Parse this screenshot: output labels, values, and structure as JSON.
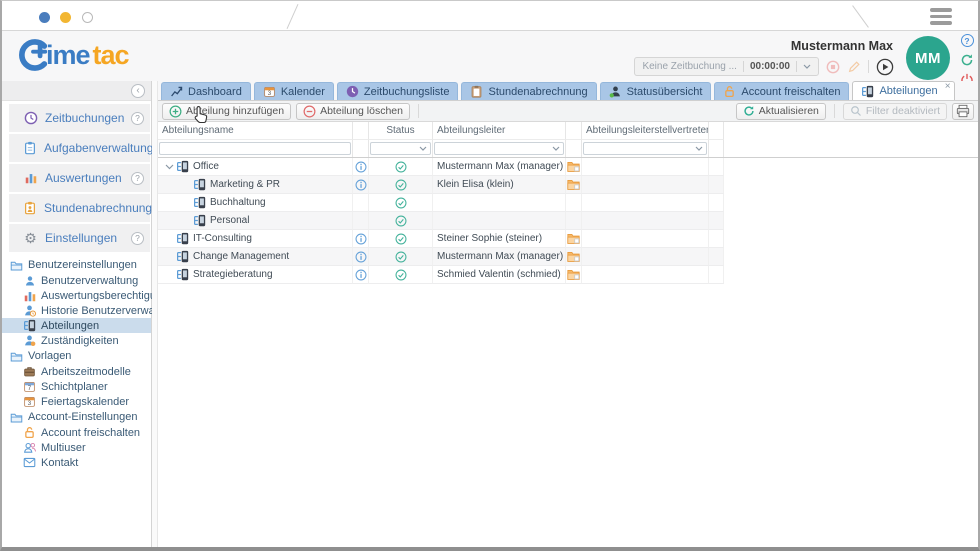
{
  "window_title": "",
  "colors": {
    "accent_blue": "#4a7ebd",
    "tab_blue": "#a9c6e6",
    "logo_blue": "#3a7cc4",
    "logo_orange": "#f5a623",
    "avatar_teal": "#2ba58e",
    "status_green": "#43b29b",
    "folder_orange": "#f2a54e",
    "info_blue": "#64a1d8"
  },
  "header": {
    "logo": {
      "text_blue": "ime",
      "text_orange": "tac"
    },
    "user_name": "Mustermann Max",
    "avatar_initials": "MM",
    "time_status": "Keine Zeitbuchung ...",
    "timer": "00:00:00",
    "help_glyph": "?"
  },
  "tabs": [
    {
      "label": "Dashboard",
      "icon": "dashboard-icon",
      "active": false
    },
    {
      "label": "Kalender",
      "icon": "calendar-icon",
      "active": false
    },
    {
      "label": "Zeitbuchungsliste",
      "icon": "clock-filled-icon",
      "active": false
    },
    {
      "label": "Stundenabrechnung",
      "icon": "clipboard-tan-icon",
      "active": false
    },
    {
      "label": "Statusübersicht",
      "icon": "person-status-icon",
      "active": false
    },
    {
      "label": "Account freischalten",
      "icon": "lock-icon",
      "active": false
    },
    {
      "label": "Abteilungen",
      "icon": "department-icon",
      "active": true,
      "closable": true
    }
  ],
  "toolbar": {
    "add_label": "Abteilung hinzufügen",
    "delete_label": "Abteilung löschen",
    "refresh_label": "Aktualisieren",
    "filter_label": "Filter deaktiviert"
  },
  "sidebar": {
    "collapse_glyph": "‹",
    "sections": [
      {
        "label": "Zeitbuchungen",
        "icon": "clock-icon",
        "help": "?"
      },
      {
        "label": "Aufgabenverwaltung",
        "icon": "clipboard-icon",
        "help": "?"
      },
      {
        "label": "Auswertungen",
        "icon": "chart-icon",
        "help": "?"
      },
      {
        "label": "Stundenabrechnung",
        "icon": "timesheet-icon",
        "help": "?"
      },
      {
        "label": "Einstellungen",
        "icon": "gear-icon",
        "help": "?"
      }
    ],
    "tree": [
      {
        "label": "Benutzereinstellungen",
        "group": true,
        "icon": "folder-icon"
      },
      {
        "label": "Benutzerverwaltung",
        "icon": "user-icon"
      },
      {
        "label": "Auswertungsberechtigungen",
        "icon": "chart-icon"
      },
      {
        "label": "Historie Benutzerverwaltung",
        "icon": "user-history-icon"
      },
      {
        "label": "Abteilungen",
        "icon": "department-icon",
        "selected": true
      },
      {
        "label": "Zuständigkeiten",
        "icon": "user-role-icon"
      },
      {
        "label": "Vorlagen",
        "group": true,
        "icon": "folder-icon"
      },
      {
        "label": "Arbeitszeitmodelle",
        "icon": "briefcase-icon"
      },
      {
        "label": "Schichtplaner",
        "icon": "calendar7-icon"
      },
      {
        "label": "Feiertagskalender",
        "icon": "calendar3-icon"
      },
      {
        "label": "Account-Einstellungen",
        "group": true,
        "icon": "folder-icon"
      },
      {
        "label": "Account freischalten",
        "icon": "lock-icon"
      },
      {
        "label": "Multiuser",
        "icon": "multiuser-icon"
      },
      {
        "label": "Kontakt",
        "icon": "mail-icon"
      }
    ]
  },
  "table": {
    "columns": [
      "Abteilungsname",
      "Status",
      "Abteilungsleiter",
      "Abteilungsleiterstellvertreter"
    ],
    "rows": [
      {
        "name": "Office",
        "level": 0,
        "expander": true,
        "info": true,
        "status": "active",
        "leader": "Mustermann Max (manager)",
        "deputy_folder": true
      },
      {
        "name": "Marketing & PR",
        "level": 1,
        "expander": false,
        "info": true,
        "status": "active",
        "leader": "Klein Elisa (klein)",
        "deputy_folder": true
      },
      {
        "name": "Buchhaltung",
        "level": 1,
        "expander": false,
        "info": false,
        "status": "active",
        "leader": "",
        "deputy_folder": false
      },
      {
        "name": "Personal",
        "level": 1,
        "expander": false,
        "info": false,
        "status": "active",
        "leader": "",
        "deputy_folder": false
      },
      {
        "name": "IT-Consulting",
        "level": 0,
        "expander": false,
        "info": true,
        "status": "active",
        "leader": "Steiner Sophie (steiner)",
        "deputy_folder": true
      },
      {
        "name": "Change Management",
        "level": 0,
        "expander": false,
        "info": true,
        "status": "active",
        "leader": "Mustermann Max (manager)",
        "deputy_folder": true
      },
      {
        "name": "Strategieberatung",
        "level": 0,
        "expander": false,
        "info": true,
        "status": "active",
        "leader": "Schmied Valentin (schmied)",
        "deputy_folder": true
      }
    ]
  }
}
